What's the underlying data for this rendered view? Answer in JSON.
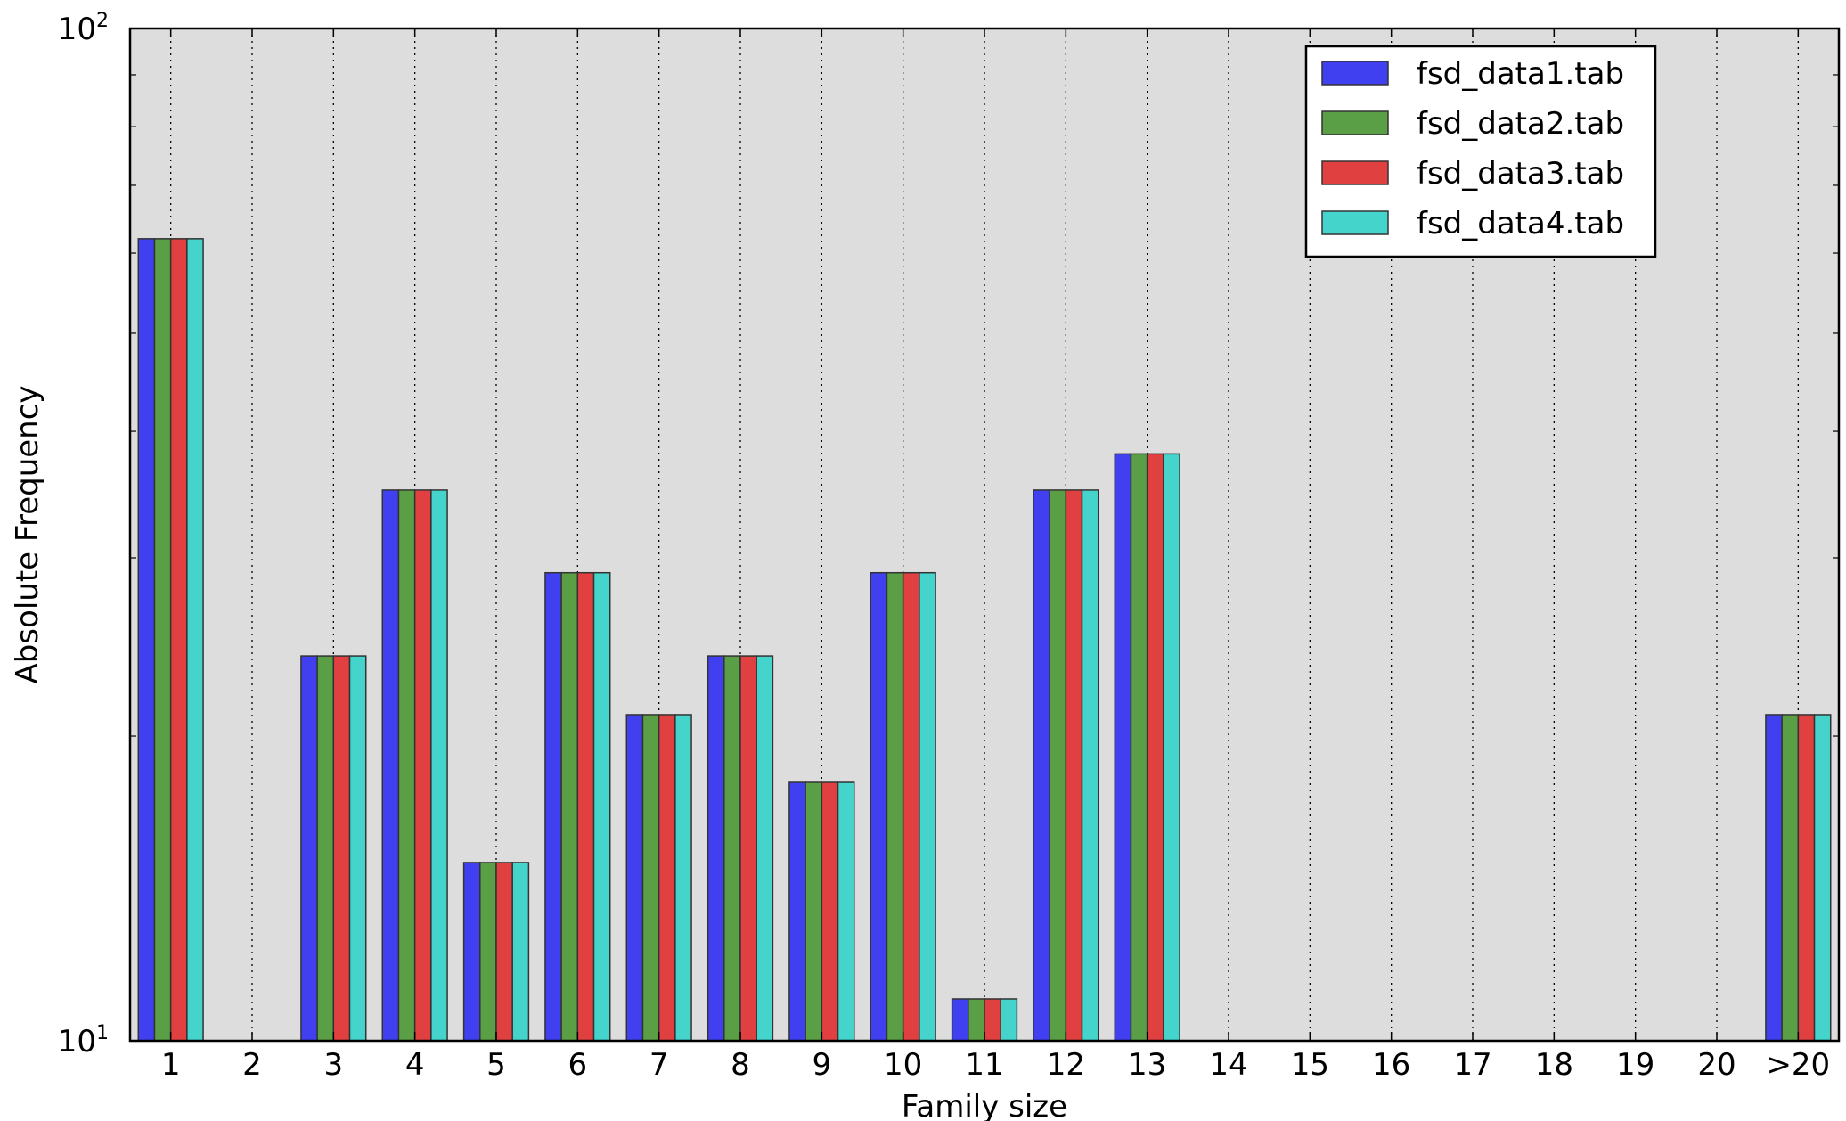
{
  "chart_data": {
    "type": "bar",
    "title": "",
    "xlabel": "Family size",
    "ylabel": "Absolute Frequency",
    "yscale": "log",
    "ylim": [
      10,
      100
    ],
    "ytick_bases": [
      "10",
      "10"
    ],
    "ytick_exps": [
      "1",
      "2"
    ],
    "ytick_values": [
      10,
      100
    ],
    "grid": "vertical dotted",
    "legend": "top-right",
    "categories": [
      "1",
      "2",
      "3",
      "4",
      "5",
      "6",
      "7",
      "8",
      "9",
      "10",
      "11",
      "12",
      "13",
      "14",
      "15",
      "16",
      "17",
      "18",
      "19",
      "20",
      ">20"
    ],
    "series": [
      {
        "name": "fsd_data1.tab",
        "color": "#4040f0",
        "values": [
          62,
          10,
          24,
          35,
          15,
          29,
          21,
          24,
          18,
          29,
          11,
          35,
          38,
          10,
          10,
          10,
          10,
          10,
          10,
          10,
          21
        ]
      },
      {
        "name": "fsd_data2.tab",
        "color": "#5a9e46",
        "values": [
          62,
          10,
          24,
          35,
          15,
          29,
          21,
          24,
          18,
          29,
          11,
          35,
          38,
          10,
          10,
          10,
          10,
          10,
          10,
          10,
          21
        ]
      },
      {
        "name": "fsd_data3.tab",
        "color": "#e04040",
        "values": [
          62,
          10,
          24,
          35,
          15,
          29,
          21,
          24,
          18,
          29,
          11,
          35,
          38,
          10,
          10,
          10,
          10,
          10,
          10,
          10,
          21
        ]
      },
      {
        "name": "fsd_data4.tab",
        "color": "#44d4cc",
        "values": [
          62,
          10,
          24,
          35,
          15,
          29,
          21,
          24,
          18,
          29,
          11,
          35,
          38,
          10,
          10,
          10,
          10,
          10,
          10,
          10,
          21
        ]
      }
    ]
  }
}
